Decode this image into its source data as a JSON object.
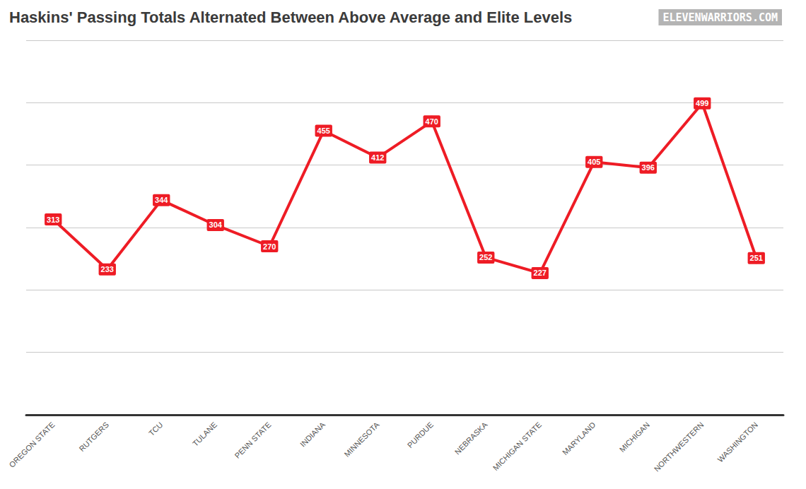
{
  "chart_data": {
    "type": "line",
    "title": "Haskins' Passing Totals Alternated Between Above Average and Elite Levels",
    "annotations": [
      "ELEVENWARRIORS.COM"
    ],
    "categories": [
      "OREGON STATE",
      "RUTGERS",
      "TCU",
      "TULANE",
      "PENN STATE",
      "INDIANA",
      "MINNESOTA",
      "PURDUE",
      "NEBRASKA",
      "MICHIGAN STATE",
      "MARYLAND",
      "MICHIGAN",
      "NORTHWESTERN",
      "WASHINGTON"
    ],
    "values": [
      313,
      233,
      344,
      304,
      270,
      455,
      412,
      470,
      252,
      227,
      405,
      396,
      499,
      251
    ],
    "color": "#ee1c25",
    "marker": "circle",
    "ylim": [
      0,
      600
    ],
    "yticks": [
      0,
      100,
      200,
      300,
      400,
      500,
      600
    ],
    "grid": true,
    "data_labels": true,
    "tick_labels": "x"
  }
}
